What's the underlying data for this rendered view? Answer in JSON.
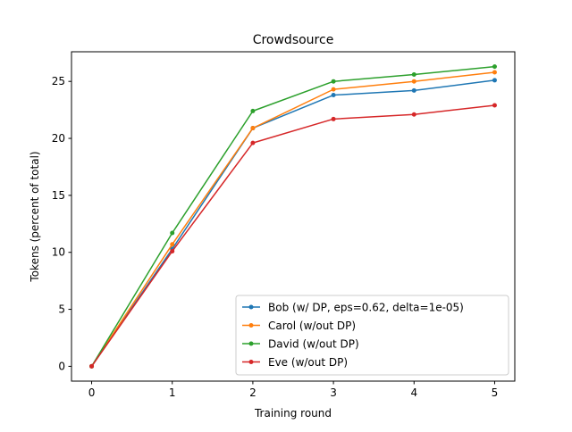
{
  "chart_data": {
    "type": "line",
    "title": "Crowdsource",
    "xlabel": "Training round",
    "ylabel": "Tokens (percent of total)",
    "x": [
      0,
      1,
      2,
      3,
      4,
      5
    ],
    "xlim": [
      -0.25,
      5.25
    ],
    "ylim": [
      -1.3,
      27.6
    ],
    "xticks": [
      0,
      1,
      2,
      3,
      4,
      5
    ],
    "yticks": [
      0,
      5,
      10,
      15,
      20,
      25
    ],
    "grid": false,
    "legend_position": "lower-right",
    "series": [
      {
        "name": "Bob (w/ DP, eps=0.62, delta=1e-05)",
        "color": "#1f77b4",
        "values": [
          0,
          10.3,
          20.9,
          23.8,
          24.2,
          25.1
        ]
      },
      {
        "name": "Carol (w/out DP)",
        "color": "#ff7f0e",
        "values": [
          0,
          10.7,
          20.9,
          24.3,
          25.0,
          25.8
        ]
      },
      {
        "name": "David (w/out DP)",
        "color": "#2ca02c",
        "values": [
          0,
          11.7,
          22.4,
          25.0,
          25.6,
          26.3
        ]
      },
      {
        "name": "Eve (w/out DP)",
        "color": "#d62728",
        "values": [
          0,
          10.1,
          19.6,
          21.7,
          22.1,
          22.9
        ]
      }
    ]
  }
}
